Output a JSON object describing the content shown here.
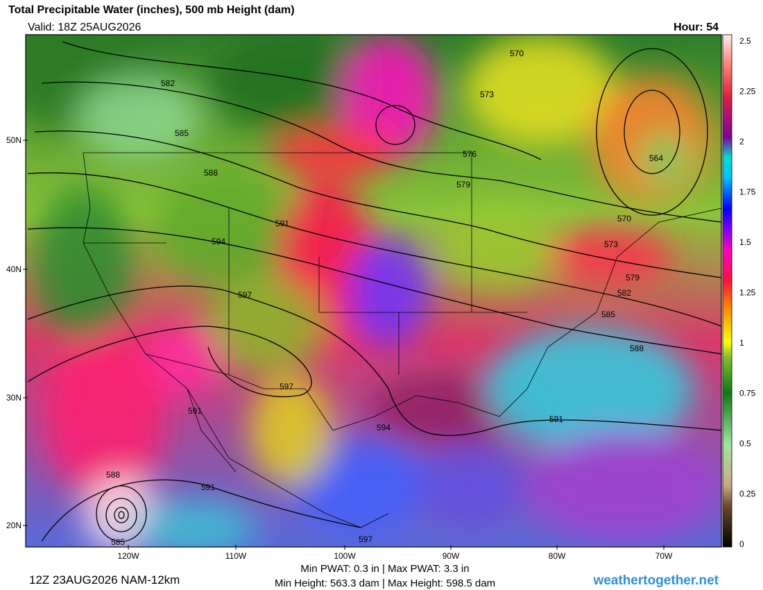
{
  "header": {
    "title": "Total Precipitable Water (inches), 500 mb Height (dam)",
    "valid": "Valid: 18Z 25AUG2026",
    "hour": "Hour: 54"
  },
  "colorbar": {
    "ticks": [
      "2.5",
      "2.25",
      "2",
      "1.75",
      "1.5",
      "1.25",
      "1",
      "0.75",
      "0.5",
      "0.25",
      "0"
    ]
  },
  "axes": {
    "lat_labels": [
      "50N",
      "40N",
      "30N",
      "20N"
    ],
    "lon_labels": [
      "120W",
      "110W",
      "100W",
      "90W",
      "80W",
      "70W"
    ]
  },
  "contour_labels": [
    "570",
    "582",
    "573",
    "585",
    "576",
    "564",
    "588",
    "579",
    "570",
    "591",
    "594",
    "573",
    "579",
    "597",
    "582",
    "585",
    "588",
    "597",
    "594",
    "591",
    "591",
    "588",
    "585",
    "597",
    "591"
  ],
  "footer": {
    "run": "12Z 23AUG2026 NAM-12km",
    "stats_pwat": "Min PWAT:   0.3 in | Max PWAT:   3.3 in",
    "stats_height": "Min Height: 563.3 dam | Max Height: 598.5 dam",
    "site": "weathertogether.net"
  }
}
